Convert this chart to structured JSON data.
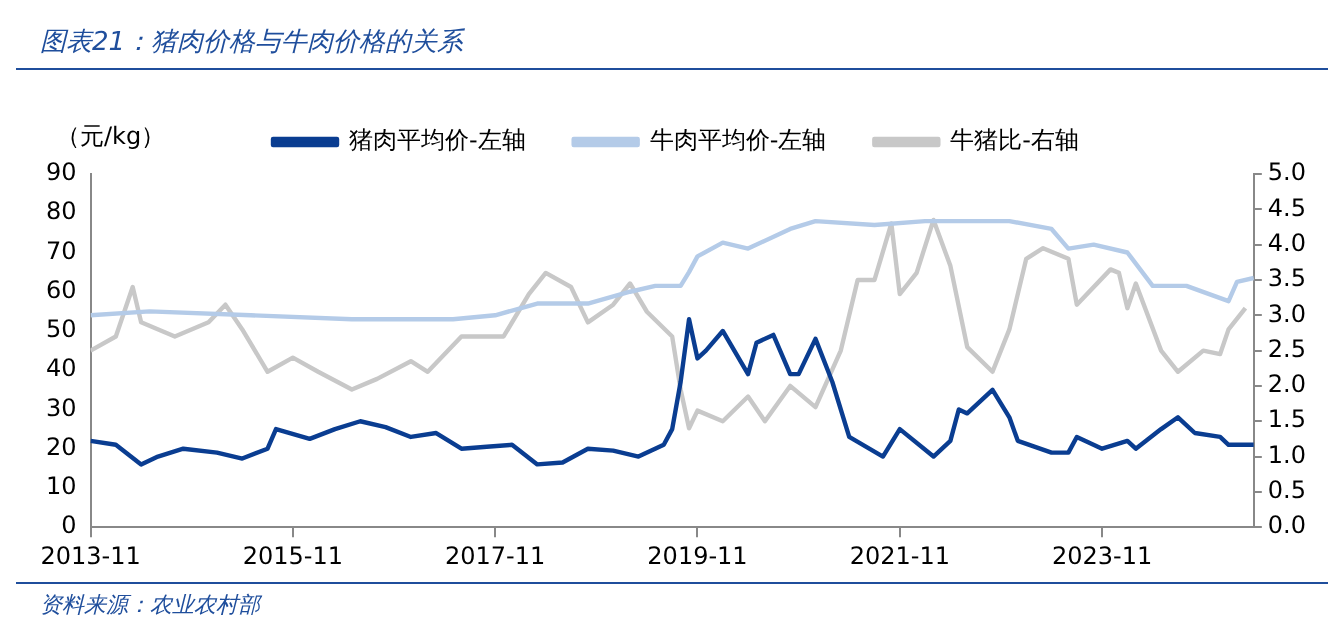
{
  "chart_data": {
    "type": "line",
    "title": "图表21：猪肉价格与牛肉价格的关系",
    "ylabel": "（元/kg）",
    "annotations": [
      "资料来源：农业农村部"
    ],
    "xlim": [
      "2013-11",
      "2025-05"
    ],
    "xticks": [
      "2013-11",
      "2015-11",
      "2017-11",
      "2019-11",
      "2021-11",
      "2023-11"
    ],
    "ylim": [
      0,
      90
    ],
    "yticks": [
      0,
      10,
      20,
      30,
      40,
      50,
      60,
      70,
      80,
      90
    ],
    "y2lim": [
      0,
      5
    ],
    "y2ticks": [
      {
        "value": 0,
        "label": "0.0"
      },
      {
        "value": 0.5,
        "label": "0.5"
      },
      {
        "value": 1,
        "label": "1.0"
      },
      {
        "value": 1.5,
        "label": "1.5"
      },
      {
        "value": 2,
        "label": "2.0"
      },
      {
        "value": 2.5,
        "label": "2.5"
      },
      {
        "value": 3,
        "label": "3.0"
      },
      {
        "value": 3.5,
        "label": "3.5"
      },
      {
        "value": 4,
        "label": "4.0"
      },
      {
        "value": 4.5,
        "label": "4.5"
      },
      {
        "value": 5,
        "label": "5.0"
      }
    ],
    "legend": "top",
    "grid": false,
    "marker": "none",
    "line_style": "solid",
    "series": [
      {
        "name": "猪肉平均价-左轴",
        "color": "#0a3d91",
        "x": [
          "2013-11",
          "2014-02",
          "2014-05",
          "2014-07",
          "2014-10",
          "2015-02",
          "2015-05",
          "2015-08",
          "2015-09",
          "2016-01",
          "2016-04",
          "2016-07",
          "2016-10",
          "2017-01",
          "2017-04",
          "2017-07",
          "2017-10",
          "2018-01",
          "2018-04",
          "2018-07",
          "2018-10",
          "2019-01",
          "2019-04",
          "2019-07",
          "2019-08",
          "2019-09",
          "2019-10",
          "2019-11",
          "2019-12",
          "2020-02",
          "2020-05",
          "2020-06",
          "2020-08",
          "2020-10",
          "2020-11",
          "2021-01",
          "2021-03",
          "2021-05",
          "2021-09",
          "2021-11",
          "2022-03",
          "2022-05",
          "2022-06",
          "2022-07",
          "2022-10",
          "2022-12",
          "2023-01",
          "2023-05",
          "2023-07",
          "2023-08",
          "2023-11",
          "2024-02",
          "2024-03",
          "2024-06",
          "2024-08",
          "2024-10",
          "2025-01",
          "2025-02",
          "2025-05"
        ],
        "values": [
          22,
          21,
          16,
          18,
          20,
          19,
          17.5,
          20,
          25,
          22.5,
          25,
          27,
          25.5,
          23,
          24,
          20,
          20.5,
          21,
          16,
          16.5,
          20,
          19.5,
          18,
          21,
          25,
          37,
          53,
          43,
          45,
          50,
          39,
          47,
          49,
          39,
          39,
          48,
          37,
          23,
          18,
          25,
          18,
          22,
          30,
          29,
          35,
          28,
          22,
          19,
          19,
          23,
          20,
          22,
          20,
          25,
          28,
          24,
          23,
          21,
          21
        ]
      },
      {
        "name": "牛肉平均价-左轴",
        "color": "#b4cbe8",
        "x": [
          "2013-11",
          "2014-06",
          "2015-06",
          "2016-06",
          "2017-06",
          "2017-11",
          "2018-04",
          "2018-10",
          "2019-03",
          "2019-06",
          "2019-09",
          "2019-10",
          "2019-11",
          "2020-02",
          "2020-05",
          "2020-10",
          "2021-01",
          "2021-08",
          "2022-02",
          "2022-07",
          "2022-12",
          "2023-05",
          "2023-07",
          "2023-10",
          "2024-02",
          "2024-05",
          "2024-09",
          "2025-02",
          "2025-03",
          "2025-05"
        ],
        "values": [
          54,
          55,
          54,
          53,
          53,
          54,
          57,
          57,
          60,
          61.5,
          61.5,
          65,
          69,
          72.5,
          71,
          76,
          78,
          77,
          78,
          78,
          78,
          76,
          71,
          72,
          70,
          61.5,
          61.5,
          57.6,
          62.5,
          63.5
        ]
      },
      {
        "name": "牛猪比-右轴",
        "color": "#c8c8c8",
        "axis": "y2",
        "x": [
          "2013-11",
          "2014-02",
          "2014-04",
          "2014-05",
          "2014-09",
          "2015-01",
          "2015-03",
          "2015-05",
          "2015-08",
          "2015-11",
          "2016-02",
          "2016-06",
          "2016-09",
          "2017-01",
          "2017-03",
          "2017-07",
          "2017-12",
          "2018-03",
          "2018-05",
          "2018-08",
          "2018-10",
          "2019-01",
          "2019-03",
          "2019-05",
          "2019-08",
          "2019-09",
          "2019-10",
          "2019-11",
          "2020-02",
          "2020-05",
          "2020-07",
          "2020-10",
          "2021-01",
          "2021-04",
          "2021-06",
          "2021-08",
          "2021-10",
          "2021-11",
          "2022-01",
          "2022-03",
          "2022-05",
          "2022-07",
          "2022-10",
          "2022-12",
          "2023-02",
          "2023-04",
          "2023-07",
          "2023-08",
          "2023-12",
          "2024-01",
          "2024-02",
          "2024-03",
          "2024-06",
          "2024-08",
          "2024-11",
          "2025-01",
          "2025-02",
          "2025-04"
        ],
        "values": [
          2.5,
          2.7,
          3.4,
          2.9,
          2.7,
          2.9,
          3.15,
          2.8,
          2.2,
          2.4,
          2.2,
          1.95,
          2.1,
          2.35,
          2.2,
          2.7,
          2.7,
          3.3,
          3.6,
          3.4,
          2.9,
          3.15,
          3.45,
          3.05,
          2.7,
          1.95,
          1.4,
          1.65,
          1.5,
          1.85,
          1.5,
          2.0,
          1.7,
          2.5,
          3.5,
          3.5,
          4.3,
          3.3,
          3.6,
          4.35,
          3.7,
          2.55,
          2.2,
          2.8,
          3.8,
          3.95,
          3.8,
          3.15,
          3.65,
          3.6,
          3.1,
          3.45,
          2.5,
          2.2,
          2.5,
          2.45,
          2.8,
          3.1
        ]
      }
    ]
  }
}
